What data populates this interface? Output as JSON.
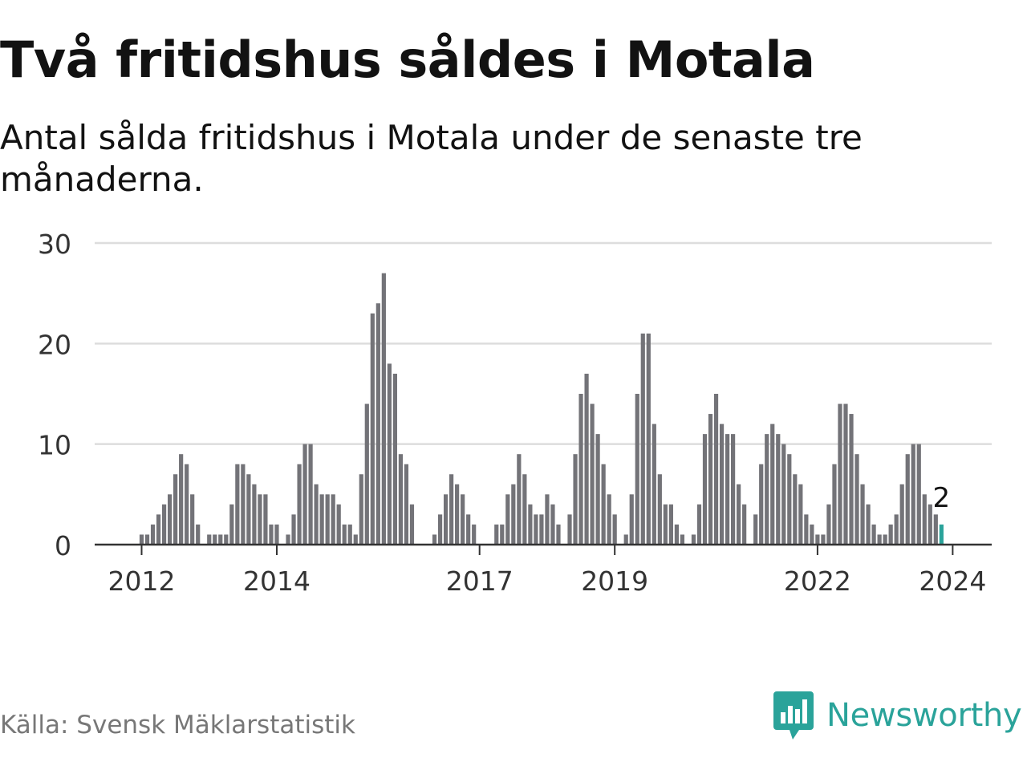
{
  "title": "Två fritidshus såldes i Motala",
  "subtitle": "Antal sålda fritidshus i Motala under de senaste tre månaderna.",
  "source": "Källa: Svensk Mäklarstatistik",
  "brand": {
    "name": "Newsworthy",
    "logo_icon": "bar-chart-speech-bubble-icon",
    "color": "#2aa39a"
  },
  "colors": {
    "bar": "#737378",
    "highlight": "#2aa39a",
    "grid": "#dddddd",
    "axis": "#333333"
  },
  "chart_data": {
    "type": "bar",
    "title": "Två fritidshus såldes i Motala",
    "xlabel": "",
    "ylabel": "",
    "ylim": [
      0,
      30
    ],
    "yticks": [
      0,
      10,
      20,
      30
    ],
    "start": {
      "year": 2012,
      "month": 1
    },
    "xtick_labels": [
      "2012",
      "2014",
      "2017",
      "2019",
      "2022",
      "2024"
    ],
    "highlight_label": "2",
    "values": [
      1,
      1,
      2,
      3,
      4,
      5,
      7,
      9,
      8,
      5,
      2,
      0,
      1,
      1,
      1,
      1,
      4,
      8,
      8,
      7,
      6,
      5,
      5,
      2,
      2,
      0,
      1,
      3,
      8,
      10,
      10,
      6,
      5,
      5,
      5,
      4,
      2,
      2,
      1,
      7,
      14,
      23,
      24,
      27,
      18,
      17,
      9,
      8,
      4,
      0,
      0,
      0,
      1,
      3,
      5,
      7,
      6,
      5,
      3,
      2,
      0,
      0,
      0,
      2,
      2,
      5,
      6,
      9,
      7,
      4,
      3,
      3,
      5,
      4,
      2,
      0,
      3,
      9,
      15,
      17,
      14,
      11,
      8,
      5,
      3,
      0,
      1,
      5,
      15,
      21,
      21,
      12,
      7,
      4,
      4,
      2,
      1,
      0,
      1,
      4,
      11,
      13,
      15,
      12,
      11,
      11,
      6,
      4,
      0,
      3,
      8,
      11,
      12,
      11,
      10,
      9,
      7,
      6,
      3,
      2,
      1,
      1,
      4,
      8,
      14,
      14,
      13,
      9,
      6,
      4,
      2,
      1,
      1,
      2,
      3,
      6,
      9,
      10,
      10,
      5,
      4,
      3,
      2
    ]
  }
}
